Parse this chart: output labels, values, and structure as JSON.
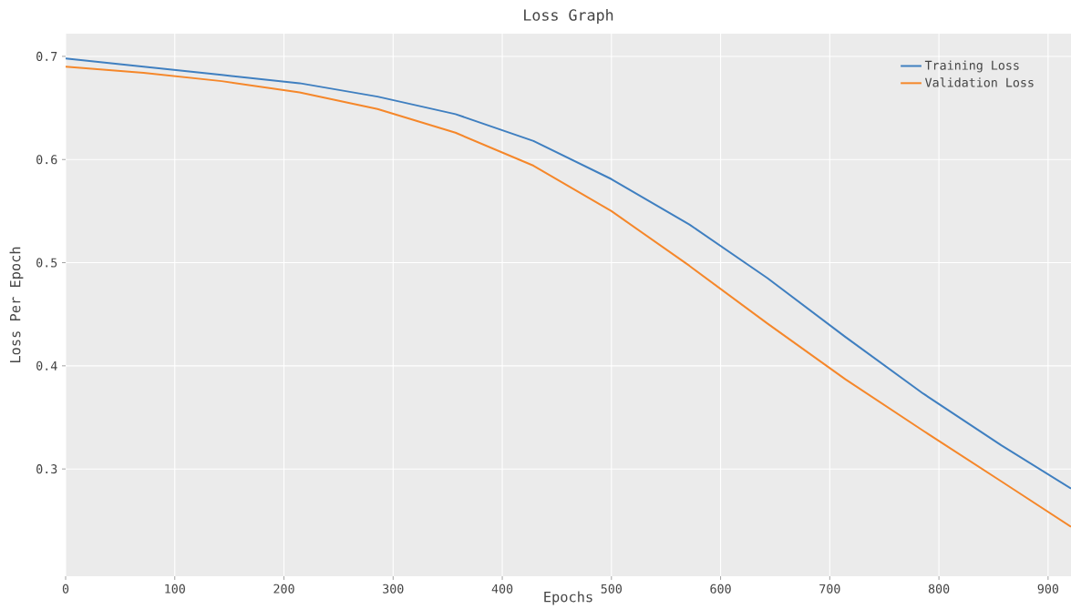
{
  "chart_data": {
    "type": "line",
    "title": "Loss Graph",
    "xlabel": "Epochs",
    "ylabel": "Loss Per Epoch",
    "xlim": [
      0,
      921
    ],
    "ylim": [
      0.196,
      0.722
    ],
    "xticks": [
      0,
      100,
      200,
      300,
      400,
      500,
      600,
      700,
      800,
      900
    ],
    "yticks": [
      0.3,
      0.4,
      0.5,
      0.6,
      0.7
    ],
    "grid": true,
    "legend": "top right",
    "marker": "none",
    "line_style": "solid",
    "series": [
      {
        "name": "Training Loss",
        "color": "#3f7fc0",
        "x": [
          0,
          71.4,
          142.9,
          214.3,
          285.7,
          357.1,
          428.6,
          500,
          571.4,
          642.9,
          714.3,
          785.7,
          857.1,
          921
        ],
        "values": [
          0.698,
          0.69,
          0.682,
          0.674,
          0.661,
          0.644,
          0.618,
          0.581,
          0.537,
          0.485,
          0.428,
          0.373,
          0.323,
          0.281
        ]
      },
      {
        "name": "Validation Loss",
        "color": "#f5872a",
        "x": [
          0,
          71.4,
          142.9,
          214.3,
          285.7,
          357.1,
          428.6,
          500,
          571.4,
          642.9,
          714.3,
          785.7,
          857.1,
          921
        ],
        "values": [
          0.69,
          0.684,
          0.676,
          0.665,
          0.649,
          0.626,
          0.594,
          0.55,
          0.497,
          0.441,
          0.387,
          0.337,
          0.288,
          0.244
        ]
      }
    ]
  }
}
